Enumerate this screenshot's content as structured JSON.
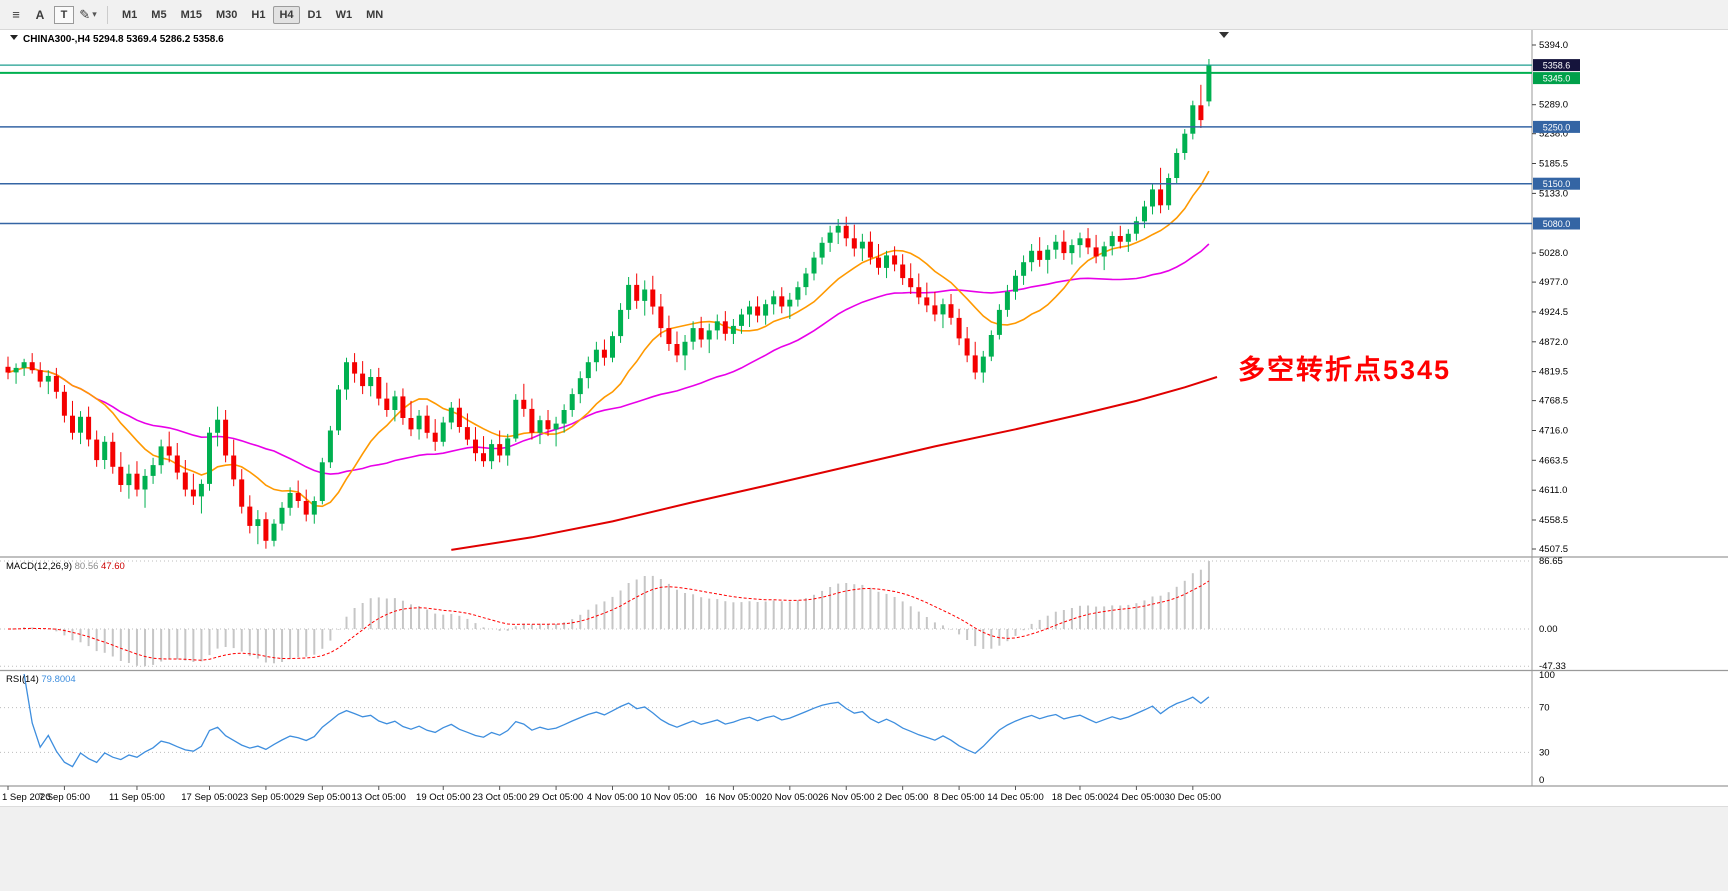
{
  "toolbar": {
    "menu_glyph": "≡",
    "cursor_label": "A",
    "text_label": "T",
    "draw_glyph": "✎",
    "caret_glyph": "▾",
    "timeframes": [
      {
        "label": "M1",
        "active": false
      },
      {
        "label": "M5",
        "active": false
      },
      {
        "label": "M15",
        "active": false
      },
      {
        "label": "M30",
        "active": false
      },
      {
        "label": "H1",
        "active": false
      },
      {
        "label": "H4",
        "active": true
      },
      {
        "label": "D1",
        "active": false
      },
      {
        "label": "W1",
        "active": false
      },
      {
        "label": "MN",
        "active": false
      }
    ]
  },
  "chart": {
    "symbol_period": "CHINA300-,H4",
    "ohlc_values": "5294.8 5369.4 5286.2 5358.6"
  },
  "annotation": {
    "text": "多空转折点5345",
    "color": "#FF0000"
  },
  "chart_data": {
    "type": "candlestick",
    "symbol": "CHINA300-",
    "timeframe": "H4",
    "price_axis": {
      "min": 4507.5,
      "max": 5394.0
    },
    "y_ticks": [
      5394.0,
      5289.0,
      5238.0,
      5185.5,
      5133.0,
      5028.0,
      4977.0,
      4924.5,
      4872.0,
      4819.5,
      4768.5,
      4716.0,
      4663.5,
      4611.0,
      4558.5,
      4507.5
    ],
    "x_labels": [
      [
        "1 Sep 2020",
        0
      ],
      [
        "7 Sep 05:00",
        7
      ],
      [
        "11 Sep 05:00",
        16
      ],
      [
        "17 Sep 05:00",
        25
      ],
      [
        "23 Sep 05:00",
        32
      ],
      [
        "29 Sep 05:00",
        39
      ],
      [
        "13 Oct 05:00",
        46
      ],
      [
        "19 Oct 05:00",
        54
      ],
      [
        "23 Oct 05:00",
        61
      ],
      [
        "29 Oct 05:00",
        68
      ],
      [
        "4 Nov 05:00",
        75
      ],
      [
        "10 Nov 05:00",
        82
      ],
      [
        "16 Nov 05:00",
        90
      ],
      [
        "20 Nov 05:00",
        97
      ],
      [
        "26 Nov 05:00",
        104
      ],
      [
        "2 Dec 05:00",
        111
      ],
      [
        "8 Dec 05:00",
        118
      ],
      [
        "14 Dec 05:00",
        125
      ],
      [
        "18 Dec 05:00",
        133
      ],
      [
        "24 Dec 05:00",
        140
      ],
      [
        "30 Dec 05:00",
        147
      ]
    ],
    "candles": [
      [
        4828,
        4846,
        4806,
        4818
      ],
      [
        4818,
        4834,
        4798,
        4826
      ],
      [
        4826,
        4842,
        4812,
        4836
      ],
      [
        4836,
        4852,
        4816,
        4822
      ],
      [
        4822,
        4836,
        4792,
        4802
      ],
      [
        4802,
        4822,
        4780,
        4812
      ],
      [
        4812,
        4826,
        4772,
        4784
      ],
      [
        4784,
        4796,
        4730,
        4742
      ],
      [
        4742,
        4768,
        4700,
        4712
      ],
      [
        4712,
        4750,
        4692,
        4740
      ],
      [
        4740,
        4758,
        4688,
        4700
      ],
      [
        4700,
        4716,
        4652,
        4664
      ],
      [
        4664,
        4706,
        4648,
        4696
      ],
      [
        4696,
        4712,
        4640,
        4652
      ],
      [
        4652,
        4678,
        4608,
        4620
      ],
      [
        4620,
        4656,
        4596,
        4640
      ],
      [
        4640,
        4662,
        4600,
        4612
      ],
      [
        4612,
        4648,
        4580,
        4636
      ],
      [
        4636,
        4668,
        4622,
        4655
      ],
      [
        4655,
        4700,
        4640,
        4688
      ],
      [
        4688,
        4714,
        4660,
        4672
      ],
      [
        4672,
        4694,
        4630,
        4642
      ],
      [
        4642,
        4664,
        4600,
        4612
      ],
      [
        4612,
        4640,
        4585,
        4600
      ],
      [
        4600,
        4630,
        4570,
        4622
      ],
      [
        4622,
        4722,
        4610,
        4712
      ],
      [
        4712,
        4758,
        4688,
        4735
      ],
      [
        4735,
        4752,
        4660,
        4672
      ],
      [
        4672,
        4700,
        4618,
        4630
      ],
      [
        4630,
        4648,
        4570,
        4582
      ],
      [
        4582,
        4602,
        4535,
        4548
      ],
      [
        4548,
        4576,
        4516,
        4560
      ],
      [
        4560,
        4572,
        4508,
        4522
      ],
      [
        4522,
        4560,
        4512,
        4552
      ],
      [
        4552,
        4590,
        4540,
        4580
      ],
      [
        4580,
        4616,
        4566,
        4606
      ],
      [
        4606,
        4628,
        4580,
        4592
      ],
      [
        4592,
        4612,
        4556,
        4568
      ],
      [
        4568,
        4600,
        4552,
        4592
      ],
      [
        4592,
        4668,
        4586,
        4660
      ],
      [
        4660,
        4724,
        4650,
        4716
      ],
      [
        4716,
        4796,
        4708,
        4788
      ],
      [
        4788,
        4844,
        4770,
        4836
      ],
      [
        4836,
        4852,
        4800,
        4816
      ],
      [
        4816,
        4838,
        4780,
        4794
      ],
      [
        4794,
        4824,
        4776,
        4810
      ],
      [
        4810,
        4826,
        4760,
        4772
      ],
      [
        4772,
        4800,
        4740,
        4752
      ],
      [
        4752,
        4786,
        4732,
        4776
      ],
      [
        4776,
        4790,
        4726,
        4738
      ],
      [
        4738,
        4768,
        4706,
        4718
      ],
      [
        4718,
        4752,
        4700,
        4742
      ],
      [
        4742,
        4760,
        4702,
        4712
      ],
      [
        4712,
        4736,
        4680,
        4696
      ],
      [
        4696,
        4740,
        4688,
        4730
      ],
      [
        4730,
        4766,
        4718,
        4756
      ],
      [
        4756,
        4772,
        4712,
        4722
      ],
      [
        4722,
        4746,
        4690,
        4700
      ],
      [
        4700,
        4722,
        4662,
        4676
      ],
      [
        4676,
        4706,
        4652,
        4662
      ],
      [
        4662,
        4700,
        4648,
        4692
      ],
      [
        4692,
        4716,
        4660,
        4672
      ],
      [
        4672,
        4710,
        4654,
        4702
      ],
      [
        4702,
        4780,
        4696,
        4770
      ],
      [
        4770,
        4798,
        4740,
        4754
      ],
      [
        4754,
        4772,
        4700,
        4712
      ],
      [
        4712,
        4742,
        4692,
        4734
      ],
      [
        4734,
        4752,
        4706,
        4718
      ],
      [
        4718,
        4740,
        4688,
        4728
      ],
      [
        4728,
        4762,
        4712,
        4752
      ],
      [
        4752,
        4790,
        4740,
        4780
      ],
      [
        4780,
        4820,
        4764,
        4808
      ],
      [
        4808,
        4846,
        4790,
        4836
      ],
      [
        4836,
        4872,
        4820,
        4858
      ],
      [
        4858,
        4876,
        4830,
        4844
      ],
      [
        4844,
        4890,
        4836,
        4882
      ],
      [
        4882,
        4940,
        4870,
        4928
      ],
      [
        4928,
        4986,
        4912,
        4972
      ],
      [
        4972,
        4992,
        4930,
        4944
      ],
      [
        4944,
        4980,
        4918,
        4964
      ],
      [
        4964,
        4988,
        4920,
        4934
      ],
      [
        4934,
        4956,
        4880,
        4896
      ],
      [
        4896,
        4918,
        4856,
        4868
      ],
      [
        4868,
        4890,
        4836,
        4848
      ],
      [
        4848,
        4884,
        4822,
        4872
      ],
      [
        4872,
        4908,
        4858,
        4896
      ],
      [
        4896,
        4916,
        4862,
        4876
      ],
      [
        4876,
        4904,
        4852,
        4892
      ],
      [
        4892,
        4920,
        4876,
        4908
      ],
      [
        4908,
        4926,
        4874,
        4886
      ],
      [
        4886,
        4912,
        4868,
        4900
      ],
      [
        4900,
        4930,
        4886,
        4920
      ],
      [
        4920,
        4944,
        4898,
        4934
      ],
      [
        4934,
        4952,
        4906,
        4918
      ],
      [
        4918,
        4946,
        4902,
        4938
      ],
      [
        4938,
        4962,
        4920,
        4952
      ],
      [
        4952,
        4968,
        4922,
        4934
      ],
      [
        4934,
        4958,
        4912,
        4946
      ],
      [
        4946,
        4978,
        4934,
        4968
      ],
      [
        4968,
        5002,
        4954,
        4992
      ],
      [
        4992,
        5030,
        4980,
        5020
      ],
      [
        5020,
        5056,
        5008,
        5046
      ],
      [
        5046,
        5076,
        5030,
        5064
      ],
      [
        5064,
        5088,
        5044,
        5076
      ],
      [
        5076,
        5092,
        5040,
        5054
      ],
      [
        5054,
        5078,
        5022,
        5036
      ],
      [
        5036,
        5062,
        5014,
        5048
      ],
      [
        5048,
        5066,
        5008,
        5020
      ],
      [
        5020,
        5044,
        4990,
        5002
      ],
      [
        5002,
        5032,
        4984,
        5024
      ],
      [
        5024,
        5040,
        4996,
        5008
      ],
      [
        5008,
        5026,
        4972,
        4984
      ],
      [
        4984,
        5010,
        4956,
        4968
      ],
      [
        4968,
        4992,
        4938,
        4950
      ],
      [
        4950,
        4976,
        4924,
        4936
      ],
      [
        4936,
        4960,
        4908,
        4920
      ],
      [
        4920,
        4948,
        4896,
        4938
      ],
      [
        4938,
        4956,
        4902,
        4914
      ],
      [
        4914,
        4930,
        4866,
        4878
      ],
      [
        4878,
        4898,
        4836,
        4848
      ],
      [
        4848,
        4872,
        4806,
        4818
      ],
      [
        4818,
        4856,
        4800,
        4846
      ],
      [
        4846,
        4892,
        4838,
        4884
      ],
      [
        4884,
        4938,
        4876,
        4928
      ],
      [
        4928,
        4972,
        4916,
        4960
      ],
      [
        4960,
        4998,
        4946,
        4988
      ],
      [
        4988,
        5024,
        4972,
        5012
      ],
      [
        5012,
        5044,
        4996,
        5032
      ],
      [
        5032,
        5056,
        5004,
        5016
      ],
      [
        5016,
        5042,
        4992,
        5034
      ],
      [
        5034,
        5060,
        5018,
        5048
      ],
      [
        5048,
        5068,
        5016,
        5028
      ],
      [
        5028,
        5052,
        5008,
        5042
      ],
      [
        5042,
        5064,
        5020,
        5054
      ],
      [
        5054,
        5072,
        5026,
        5038
      ],
      [
        5038,
        5060,
        5010,
        5022
      ],
      [
        5022,
        5048,
        4998,
        5040
      ],
      [
        5040,
        5066,
        5024,
        5058
      ],
      [
        5058,
        5076,
        5036,
        5048
      ],
      [
        5048,
        5070,
        5030,
        5062
      ],
      [
        5062,
        5092,
        5050,
        5084
      ],
      [
        5084,
        5120,
        5072,
        5110
      ],
      [
        5110,
        5150,
        5096,
        5140
      ],
      [
        5140,
        5178,
        5098,
        5112
      ],
      [
        5112,
        5168,
        5104,
        5160
      ],
      [
        5160,
        5212,
        5150,
        5204
      ],
      [
        5204,
        5246,
        5192,
        5238
      ],
      [
        5238,
        5296,
        5228,
        5288
      ],
      [
        5288,
        5324,
        5248,
        5262
      ],
      [
        5294.8,
        5369.4,
        5286.2,
        5358.6
      ]
    ],
    "hlines": [
      {
        "label": "5358.6",
        "price": 5358.6,
        "line": "#1D9E8F",
        "tag": "#15143C",
        "width": 1.2
      },
      {
        "label": "5345.0",
        "price": 5345.0,
        "line": "#00B050",
        "tag": "#00A04A",
        "width": 2
      },
      {
        "label": "5250.0",
        "price": 5250.0,
        "line": "#3465A4",
        "tag": "#3465A4",
        "width": 1.5
      },
      {
        "label": "5150.0",
        "price": 5150.0,
        "line": "#3465A4",
        "tag": "#3465A4",
        "width": 1.5
      },
      {
        "label": "5080.0",
        "price": 5080.0,
        "line": "#3465A4",
        "tag": "#3465A4",
        "width": 1.5
      }
    ],
    "moving_averages": {
      "orange_period": 12,
      "magenta_period": 34,
      "colors": {
        "orange": "#FF9900",
        "magenta": "#E800E8",
        "red": "#E00000"
      }
    },
    "ma_red_points": [
      [
        55,
        4506
      ],
      [
        65,
        4528
      ],
      [
        75,
        4556
      ],
      [
        85,
        4590
      ],
      [
        95,
        4622
      ],
      [
        105,
        4655
      ],
      [
        115,
        4688
      ],
      [
        125,
        4718
      ],
      [
        133,
        4744
      ],
      [
        140,
        4768
      ],
      [
        146,
        4792
      ],
      [
        150,
        4810
      ]
    ],
    "colors": {
      "up": "#00B050",
      "down": "#F40000",
      "macd_hist": "#C6C6C6",
      "macd_signal": "#FF0000",
      "rsi": "#3E8EDE"
    },
    "macd": {
      "label": "MACD(12,26,9)",
      "main_value": "80.56",
      "signal_value": "47.60",
      "axis_labels": [
        86.65,
        0,
        -47.33
      ]
    },
    "rsi": {
      "label": "RSI(14)",
      "value": "79.8004",
      "axis_labels": [
        100,
        70,
        30,
        0
      ],
      "levels": [
        70,
        30
      ]
    }
  }
}
